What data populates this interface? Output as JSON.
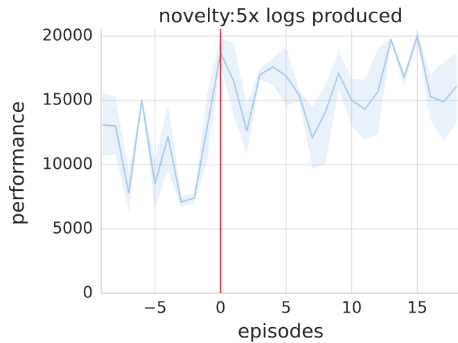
{
  "chart_data": {
    "type": "line",
    "title": "novelty:5x logs produced",
    "x_label": "episodes",
    "y_label": "performance",
    "x": [
      -9,
      -8,
      -7,
      -6,
      -5,
      -4,
      -3,
      -2,
      -1,
      0,
      1,
      2,
      3,
      4,
      5,
      6,
      7,
      8,
      9,
      10,
      11,
      12,
      13,
      14,
      15,
      16,
      17,
      18
    ],
    "series": [
      {
        "color": "#a6c8ec",
        "values": [
          13100,
          13000,
          7800,
          15000,
          8500,
          12200,
          7100,
          7400,
          13000,
          18700,
          16500,
          12600,
          17000,
          17600,
          16900,
          15400,
          12100,
          14100,
          17100,
          15000,
          14300,
          15700,
          19700,
          16800,
          20000,
          15300,
          14900,
          16100
        ],
        "lower": [
          10700,
          10800,
          6300,
          14700,
          6700,
          9500,
          6700,
          7000,
          10400,
          17800,
          13800,
          10800,
          16600,
          16200,
          14600,
          14900,
          9700,
          10000,
          15900,
          13000,
          11900,
          12400,
          19500,
          16100,
          19600,
          13500,
          11800,
          13300
        ],
        "upper": [
          15600,
          15300,
          9500,
          15300,
          10300,
          14800,
          7600,
          7700,
          15600,
          19800,
          19500,
          14700,
          17500,
          18300,
          19200,
          15800,
          14500,
          16200,
          18800,
          16700,
          16600,
          19000,
          19900,
          17200,
          20400,
          17000,
          18000,
          18700
        ]
      }
    ],
    "vline": {
      "x": 0,
      "color": "#e03030"
    },
    "xlim": [
      -9.1,
      18.1
    ],
    "ylim": [
      0,
      20550
    ],
    "xticks": [
      {
        "value": -5,
        "label": "−5"
      },
      0,
      5,
      10,
      15
    ],
    "yticks": [
      0,
      5000,
      10000,
      15000,
      20000
    ],
    "grid": true
  }
}
